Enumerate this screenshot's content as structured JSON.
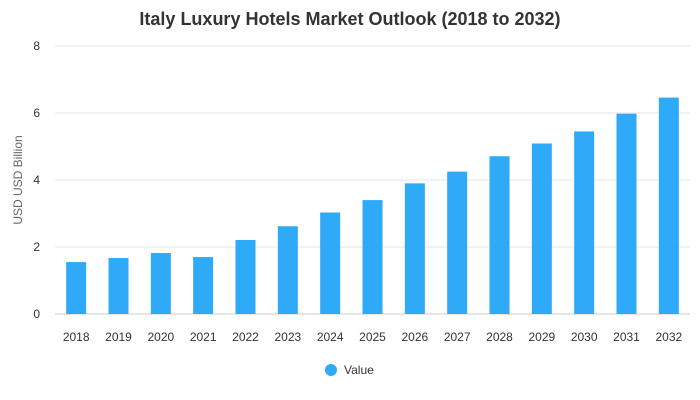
{
  "chart_data": {
    "type": "bar",
    "title": "Italy Luxury Hotels Market Outlook (2018 to 2032)",
    "xlabel": "",
    "ylabel": "USD USD Billion",
    "categories": [
      "2018",
      "2019",
      "2020",
      "2021",
      "2022",
      "2023",
      "2024",
      "2025",
      "2026",
      "2027",
      "2028",
      "2029",
      "2030",
      "2031",
      "2032"
    ],
    "series": [
      {
        "name": "Value",
        "color": "#2eaaf8",
        "values": [
          1.55,
          1.67,
          1.82,
          1.7,
          2.21,
          2.62,
          3.03,
          3.4,
          3.9,
          4.25,
          4.71,
          5.09,
          5.45,
          5.98,
          6.46
        ]
      }
    ],
    "ylim": [
      0,
      8
    ],
    "yticks": [
      "0",
      "2",
      "4",
      "6",
      "8"
    ],
    "grid": true,
    "legend_position": "bottom"
  }
}
